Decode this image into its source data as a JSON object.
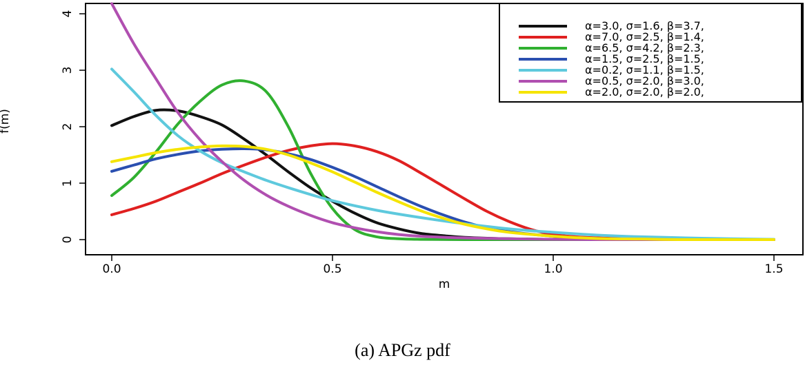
{
  "chart_data": {
    "type": "line",
    "xlabel": "m",
    "ylabel": "f(m)",
    "xlim": [
      0.0,
      1.5
    ],
    "ylim": [
      0,
      4
    ],
    "x_ticks": [
      "0.0",
      "0.5",
      "1.0",
      "1.5"
    ],
    "y_ticks": [
      "0",
      "1",
      "2",
      "3",
      "4"
    ],
    "legend_position": "top-right",
    "grid": false,
    "series": [
      {
        "name": "α=3.0, σ=1.6, β=3.7,",
        "color": "#111111",
        "x": [
          0,
          0.05,
          0.1,
          0.15,
          0.2,
          0.25,
          0.3,
          0.35,
          0.4,
          0.45,
          0.5,
          0.55,
          0.6,
          0.65,
          0.7,
          0.75,
          0.8,
          0.9,
          1.0,
          1.1,
          1.2,
          1.3,
          1.4,
          1.5
        ],
        "y": [
          2.02,
          2.18,
          2.29,
          2.28,
          2.18,
          2.03,
          1.78,
          1.5,
          1.2,
          0.92,
          0.68,
          0.47,
          0.3,
          0.19,
          0.11,
          0.07,
          0.04,
          0.015,
          0.005,
          0.002,
          0.001,
          0,
          0,
          0
        ]
      },
      {
        "name": "α=7.0, σ=2.5, β=1.4,",
        "color": "#e02020",
        "x": [
          0,
          0.05,
          0.1,
          0.15,
          0.2,
          0.25,
          0.3,
          0.35,
          0.4,
          0.45,
          0.5,
          0.55,
          0.6,
          0.65,
          0.7,
          0.75,
          0.8,
          0.85,
          0.9,
          0.95,
          1.0,
          1.05,
          1.1,
          1.2,
          1.3,
          1.4,
          1.5
        ],
        "y": [
          0.44,
          0.55,
          0.68,
          0.84,
          1.0,
          1.17,
          1.32,
          1.46,
          1.58,
          1.66,
          1.7,
          1.66,
          1.56,
          1.4,
          1.18,
          0.95,
          0.72,
          0.5,
          0.32,
          0.18,
          0.09,
          0.05,
          0.03,
          0.01,
          0.005,
          0,
          0
        ]
      },
      {
        "name": "α=6.5, σ=4.2, β=2.3,",
        "color": "#30b030",
        "x": [
          0,
          0.05,
          0.1,
          0.15,
          0.2,
          0.25,
          0.3,
          0.35,
          0.4,
          0.45,
          0.5,
          0.55,
          0.6,
          0.65,
          0.7,
          0.8,
          0.9,
          1.0,
          1.2,
          1.5
        ],
        "y": [
          0.78,
          1.1,
          1.55,
          2.05,
          2.45,
          2.74,
          2.81,
          2.62,
          2.0,
          1.18,
          0.55,
          0.18,
          0.05,
          0.015,
          0.005,
          0,
          0,
          0,
          0,
          0
        ]
      },
      {
        "name": "α=1.5, σ=2.5, β=1.5,",
        "color": "#2a4fb0",
        "x": [
          0,
          0.05,
          0.1,
          0.15,
          0.2,
          0.25,
          0.3,
          0.35,
          0.4,
          0.45,
          0.5,
          0.55,
          0.6,
          0.65,
          0.7,
          0.75,
          0.8,
          0.85,
          0.9,
          1.0,
          1.1,
          1.2,
          1.3,
          1.5
        ],
        "y": [
          1.21,
          1.32,
          1.43,
          1.51,
          1.57,
          1.6,
          1.61,
          1.59,
          1.52,
          1.42,
          1.28,
          1.12,
          0.94,
          0.76,
          0.59,
          0.44,
          0.31,
          0.21,
          0.14,
          0.06,
          0.02,
          0.01,
          0,
          0
        ]
      },
      {
        "name": "α=0.2, σ=1.1, β=1.5,",
        "color": "#5ec9dd",
        "x": [
          0,
          0.05,
          0.1,
          0.15,
          0.2,
          0.25,
          0.3,
          0.35,
          0.4,
          0.45,
          0.5,
          0.6,
          0.7,
          0.8,
          0.9,
          1.0,
          1.1,
          1.2,
          1.3,
          1.4,
          1.5
        ],
        "y": [
          3.02,
          2.62,
          2.2,
          1.84,
          1.57,
          1.36,
          1.2,
          1.05,
          0.92,
          0.8,
          0.69,
          0.52,
          0.39,
          0.28,
          0.19,
          0.13,
          0.08,
          0.05,
          0.03,
          0.015,
          0.005
        ]
      },
      {
        "name": "α=0.5, σ=2.0, β=3.0,",
        "color": "#b04fb0",
        "x": [
          0,
          0.05,
          0.1,
          0.15,
          0.2,
          0.25,
          0.3,
          0.35,
          0.4,
          0.45,
          0.5,
          0.55,
          0.6,
          0.65,
          0.7,
          0.8,
          0.9,
          1.0,
          1.1,
          1.2,
          1.3,
          1.5
        ],
        "y": [
          4.18,
          3.47,
          2.85,
          2.25,
          1.77,
          1.38,
          1.05,
          0.79,
          0.59,
          0.43,
          0.3,
          0.21,
          0.14,
          0.09,
          0.06,
          0.03,
          0.015,
          0.005,
          0,
          0,
          0,
          0
        ]
      },
      {
        "name": "α=2.0, σ=2.0, β=2.0,",
        "color": "#f5e400",
        "x": [
          0,
          0.05,
          0.1,
          0.15,
          0.2,
          0.25,
          0.3,
          0.35,
          0.4,
          0.45,
          0.5,
          0.55,
          0.6,
          0.65,
          0.7,
          0.75,
          0.8,
          0.85,
          0.9,
          1.0,
          1.1,
          1.2,
          1.3,
          1.5
        ],
        "y": [
          1.38,
          1.46,
          1.54,
          1.6,
          1.64,
          1.66,
          1.65,
          1.6,
          1.5,
          1.36,
          1.2,
          1.02,
          0.84,
          0.67,
          0.51,
          0.38,
          0.27,
          0.19,
          0.13,
          0.06,
          0.02,
          0.01,
          0,
          0
        ]
      }
    ]
  },
  "caption": "(a)  APGz pdf"
}
